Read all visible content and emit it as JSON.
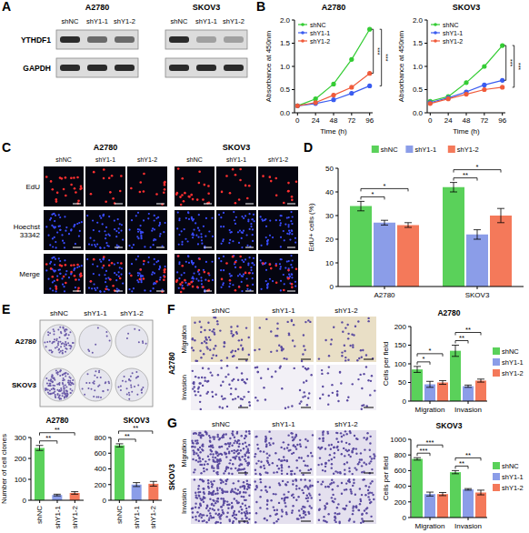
{
  "panel_labels": [
    "A",
    "B",
    "C",
    "D",
    "E",
    "F",
    "G"
  ],
  "blot": {
    "cell_lines": [
      "A2780",
      "SKOV3"
    ],
    "lanes": [
      "shNC",
      "shY1-1",
      "shY1-2"
    ],
    "proteins": [
      "YTHDF1",
      "GAPDH"
    ]
  },
  "edu_images": {
    "cell_lines": [
      "A2780",
      "SKOV3"
    ],
    "lanes": [
      "shNC",
      "shY1-1",
      "shY1-2"
    ],
    "channels": [
      "EdU",
      "Hoechst 33342",
      "Merge"
    ]
  },
  "colony_images": {
    "cell_lines": [
      "A2780",
      "SKOV3"
    ],
    "lanes": [
      "shNC",
      "shY1-1",
      "shY1-2"
    ]
  },
  "transwell_images": {
    "cell_lines": [
      "A2780",
      "SKOV3"
    ],
    "lanes": [
      "shNC",
      "shY1-1",
      "shY1-2"
    ],
    "assays": [
      "Migration",
      "Invasion"
    ]
  },
  "chart_data": [
    {
      "type": "line",
      "title": "A2780",
      "x_label": "Time (h)",
      "y_label": "Absorbance at 450nm",
      "x": [
        0,
        24,
        48,
        72,
        96
      ],
      "xlim": [
        -4,
        100
      ],
      "xticks": [
        0,
        24,
        48,
        72,
        96
      ],
      "ylim": [
        0,
        2
      ],
      "yticks": [
        {
          "value": 0,
          "label": "0.0"
        },
        0.5,
        {
          "value": 1,
          "label": "1.0"
        },
        1.5,
        {
          "value": 2,
          "label": "2.0"
        }
      ],
      "legend": "top-left",
      "marker": "circle",
      "series": [
        {
          "name": "shNC",
          "color": "#33cc33",
          "values": [
            0.15,
            0.3,
            0.62,
            1.15,
            1.8
          ]
        },
        {
          "name": "shY1-1",
          "color": "#3a5cf0",
          "values": [
            0.15,
            0.2,
            0.28,
            0.42,
            0.58
          ]
        },
        {
          "name": "shY1-2",
          "color": "#f05a3a",
          "values": [
            0.15,
            0.22,
            0.38,
            0.55,
            0.85
          ]
        }
      ],
      "annotations": [
        {
          "text": "***",
          "series": "shY1-2"
        },
        {
          "text": "***",
          "series": "shY1-1"
        }
      ]
    },
    {
      "type": "line",
      "title": "SKOV3",
      "x_label": "Time (h)",
      "y_label": "Absorbance at 450nm",
      "x": [
        0,
        24,
        48,
        72,
        96
      ],
      "xlim": [
        -4,
        100
      ],
      "xticks": [
        0,
        24,
        48,
        72,
        96
      ],
      "ylim": [
        0,
        2
      ],
      "yticks": [
        {
          "value": 0,
          "label": "0.0"
        },
        0.5,
        {
          "value": 1,
          "label": "1.0"
        },
        1.5,
        {
          "value": 2,
          "label": "2.0"
        }
      ],
      "legend": "top-left",
      "marker": "circle",
      "series": [
        {
          "name": "shNC",
          "color": "#33cc33",
          "values": [
            0.25,
            0.35,
            0.65,
            1.0,
            1.45
          ]
        },
        {
          "name": "shY1-1",
          "color": "#3a5cf0",
          "values": [
            0.22,
            0.32,
            0.45,
            0.6,
            0.7
          ]
        },
        {
          "name": "shY1-2",
          "color": "#f05a3a",
          "values": [
            0.2,
            0.3,
            0.4,
            0.5,
            0.55
          ]
        }
      ],
      "annotations": [
        {
          "text": "***",
          "series": "shY1-1"
        },
        {
          "text": "***",
          "series": "shY1-2"
        }
      ]
    },
    {
      "type": "bar",
      "y_label": "EdU+ cells (%)",
      "categories": [
        "A2780",
        "SKOV3"
      ],
      "ylim": [
        0,
        50
      ],
      "yticks": [
        0,
        10,
        20,
        30,
        40,
        50
      ],
      "legend": "top",
      "series": [
        {
          "name": "shNC",
          "color": "#5ad15a",
          "values": [
            34,
            42
          ],
          "errors": [
            2,
            2
          ]
        },
        {
          "name": "shY1-1",
          "color": "#8b9de8",
          "values": [
            27,
            22
          ],
          "errors": [
            1,
            2
          ]
        },
        {
          "name": "shY1-2",
          "color": "#f4795a",
          "values": [
            26,
            30
          ],
          "errors": [
            1,
            3
          ]
        }
      ],
      "annotations": [
        {
          "text": "*",
          "category": "A2780",
          "series": "shY1-1"
        },
        {
          "text": "*",
          "category": "A2780",
          "series": "shY1-2"
        },
        {
          "text": "**",
          "category": "SKOV3",
          "series": "shY1-1"
        },
        {
          "text": "*",
          "category": "SKOV3",
          "series": "shY1-2"
        }
      ]
    },
    {
      "type": "bar",
      "title": "A2780",
      "y_label": "Number of cell clones",
      "categories": [
        "shNC",
        "shY1-1",
        "shY1-2"
      ],
      "values": [
        250,
        25,
        35
      ],
      "errors": [
        12,
        4,
        6
      ],
      "colors": [
        "#5ad15a",
        "#8b9de8",
        "#f4795a"
      ],
      "ylim": [
        0,
        300
      ],
      "yticks": [
        0,
        100,
        200,
        300
      ],
      "annotations": [
        {
          "text": "**",
          "category": "shY1-1"
        },
        {
          "text": "**",
          "category": "shY1-2"
        }
      ]
    },
    {
      "type": "bar",
      "title": "SKOV3",
      "categories": [
        "shNC",
        "shY1-1",
        "shY1-2"
      ],
      "values": [
        700,
        200,
        210
      ],
      "errors": [
        20,
        25,
        30
      ],
      "colors": [
        "#5ad15a",
        "#8b9de8",
        "#f4795a"
      ],
      "ylim": [
        0,
        800
      ],
      "yticks": [
        0,
        200,
        400,
        600,
        800
      ],
      "annotations": [
        {
          "text": "**",
          "category": "shY1-1"
        },
        {
          "text": "**",
          "category": "shY1-2"
        }
      ]
    },
    {
      "type": "bar",
      "title": "A2780",
      "y_label": "Cells per field",
      "categories": [
        "Migration",
        "Invasion"
      ],
      "ylim": [
        0,
        200
      ],
      "yticks": [
        0,
        50,
        100,
        150,
        200
      ],
      "legend": "right",
      "series": [
        {
          "name": "shNC",
          "color": "#5ad15a",
          "values": [
            85,
            135
          ],
          "errors": [
            8,
            15
          ]
        },
        {
          "name": "shY1-1",
          "color": "#8b9de8",
          "values": [
            45,
            40
          ],
          "errors": [
            8,
            3
          ]
        },
        {
          "name": "shY1-2",
          "color": "#f4795a",
          "values": [
            50,
            55
          ],
          "errors": [
            5,
            4
          ]
        }
      ],
      "annotations": [
        {
          "text": "*",
          "category": "Migration",
          "series": "shY1-1"
        },
        {
          "text": "*",
          "category": "Migration",
          "series": "shY1-2"
        },
        {
          "text": "**",
          "category": "Invasion",
          "series": "shY1-1"
        },
        {
          "text": "**",
          "category": "Invasion",
          "series": "shY1-2"
        }
      ]
    },
    {
      "type": "bar",
      "title": "SKOV3",
      "y_label": "Cells per field",
      "categories": [
        "Migration",
        "Invasion"
      ],
      "ylim": [
        0,
        1000
      ],
      "yticks": [
        0,
        200,
        400,
        600,
        800,
        1000
      ],
      "legend": "right",
      "series": [
        {
          "name": "shNC",
          "color": "#5ad15a",
          "values": [
            750,
            580
          ],
          "errors": [
            15,
            20
          ]
        },
        {
          "name": "shY1-1",
          "color": "#8b9de8",
          "values": [
            300,
            360
          ],
          "errors": [
            25,
            10
          ]
        },
        {
          "name": "shY1-2",
          "color": "#f4795a",
          "values": [
            300,
            320
          ],
          "errors": [
            20,
            30
          ]
        }
      ],
      "annotations": [
        {
          "text": "***",
          "category": "Migration",
          "series": "shY1-1"
        },
        {
          "text": "***",
          "category": "Migration",
          "series": "shY1-2"
        },
        {
          "text": "**",
          "category": "Invasion",
          "series": "shY1-1"
        },
        {
          "text": "**",
          "category": "Invasion",
          "series": "shY1-2"
        }
      ]
    }
  ]
}
